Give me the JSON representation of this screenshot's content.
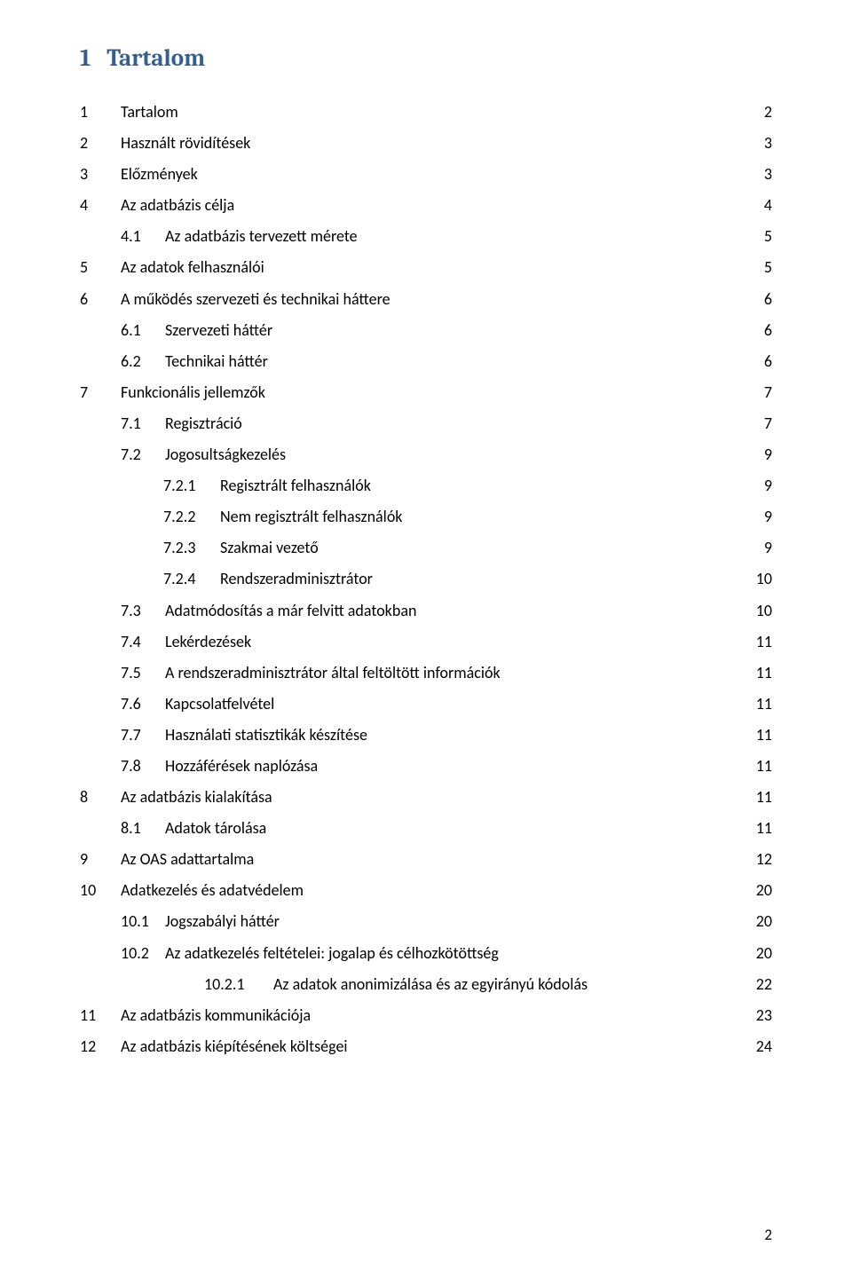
{
  "heading_number": "1",
  "heading_text": "Tartalom",
  "heading_color": "#365f91",
  "text_color": "#000000",
  "background_color": "#ffffff",
  "page_number": "2",
  "toc": [
    {
      "indent": 0,
      "num": "1",
      "title": "Tartalom",
      "page": "2"
    },
    {
      "indent": 0,
      "num": "2",
      "title": "Használt rövidítések",
      "page": "3"
    },
    {
      "indent": 0,
      "num": "3",
      "title": "Előzmények",
      "page": "3"
    },
    {
      "indent": 0,
      "num": "4",
      "title": "Az adatbázis célja",
      "page": "4"
    },
    {
      "indent": 1,
      "num": "4.1",
      "title": "Az adatbázis tervezett mérete",
      "page": "5"
    },
    {
      "indent": 0,
      "num": "5",
      "title": "Az adatok felhasználói",
      "page": "5"
    },
    {
      "indent": 0,
      "num": "6",
      "title": "A működés szervezeti és technikai háttere",
      "page": "6"
    },
    {
      "indent": 1,
      "num": "6.1",
      "title": "Szervezeti háttér",
      "page": "6"
    },
    {
      "indent": 1,
      "num": "6.2",
      "title": "Technikai háttér",
      "page": "6"
    },
    {
      "indent": 0,
      "num": "7",
      "title": "Funkcionális jellemzők",
      "page": "7"
    },
    {
      "indent": 1,
      "num": "7.1",
      "title": "Regisztráció",
      "page": "7"
    },
    {
      "indent": 1,
      "num": "7.2",
      "title": "Jogosultságkezelés",
      "page": "9"
    },
    {
      "indent": 2,
      "num": "7.2.1",
      "title": "Regisztrált felhasználók",
      "page": "9"
    },
    {
      "indent": 2,
      "num": "7.2.2",
      "title": "Nem regisztrált felhasználók",
      "page": "9"
    },
    {
      "indent": 2,
      "num": "7.2.3",
      "title": "Szakmai vezető",
      "page": "9"
    },
    {
      "indent": 2,
      "num": "7.2.4",
      "title": "Rendszeradminisztrátor",
      "page": "10"
    },
    {
      "indent": 1,
      "num": "7.3",
      "title": "Adatmódosítás a már felvitt adatokban",
      "page": "10"
    },
    {
      "indent": 1,
      "num": "7.4",
      "title": "Lekérdezések",
      "page": "11"
    },
    {
      "indent": 1,
      "num": "7.5",
      "title": "A rendszeradminisztrátor által feltöltött információk",
      "page": "11"
    },
    {
      "indent": 1,
      "num": "7.6",
      "title": "Kapcsolatfelvétel",
      "page": "11"
    },
    {
      "indent": 1,
      "num": "7.7",
      "title": "Használati statisztikák készítése",
      "page": "11"
    },
    {
      "indent": 1,
      "num": "7.8",
      "title": "Hozzáférések naplózása",
      "page": "11"
    },
    {
      "indent": 0,
      "num": "8",
      "title": "Az adatbázis kialakítása",
      "page": "11"
    },
    {
      "indent": 1,
      "num": "8.1",
      "title": "Adatok tárolása",
      "page": "11"
    },
    {
      "indent": 0,
      "num": "9",
      "title": "Az OAS adattartalma",
      "page": "12"
    },
    {
      "indent": 0,
      "num": "10",
      "title": "Adatkezelés és adatvédelem",
      "page": "20"
    },
    {
      "indent": 1,
      "num": "10.1",
      "title": "Jogszabályi háttér",
      "page": "20"
    },
    {
      "indent": 1,
      "num": "10.2",
      "title": "Az adatkezelés feltételei: jogalap és célhozkötöttség",
      "page": "20"
    },
    {
      "indent": 3,
      "num": "10.2.1",
      "title": "Az adatok anonimizálása és az egyirányú kódolás",
      "page": "22"
    },
    {
      "indent": 0,
      "num": "11",
      "title": "Az adatbázis kommunikációja",
      "page": "23"
    },
    {
      "indent": 0,
      "num": "12",
      "title": "Az adatbázis kiépítésének költségei",
      "page": "24"
    }
  ]
}
